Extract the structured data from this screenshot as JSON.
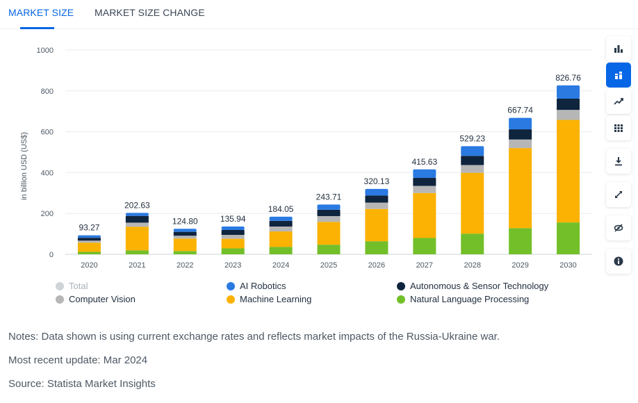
{
  "tabs": [
    {
      "label": "MARKET SIZE"
    },
    {
      "label": "MARKET SIZE CHANGE"
    }
  ],
  "colors": {
    "accent": "#0666e5",
    "ai_robotics": "#2a7ae2",
    "autonomous": "#0f243d",
    "computer_vision": "#b6b6b6",
    "machine_learning": "#fbb202",
    "nlp": "#73bf2a",
    "total_disabled": "#cfd4d9"
  },
  "toolbar": [
    {
      "name": "bar-chart-icon"
    },
    {
      "name": "stacked-bar-icon"
    },
    {
      "name": "trend-line-icon"
    },
    {
      "name": "table-icon"
    },
    {
      "name": "download-icon"
    },
    {
      "name": "fullscreen-icon"
    },
    {
      "name": "hide-icon"
    },
    {
      "name": "info-icon"
    }
  ],
  "chart_data": {
    "type": "bar",
    "stacked": true,
    "title": "",
    "xlabel": "",
    "ylabel": "in billion USD (US$)",
    "ylim": [
      0,
      1000
    ],
    "yticks": [
      0,
      200,
      400,
      600,
      800,
      1000
    ],
    "categories": [
      "2020",
      "2021",
      "2022",
      "2023",
      "2024",
      "2025",
      "2026",
      "2027",
      "2028",
      "2029",
      "2030"
    ],
    "totals": [
      93.27,
      202.63,
      124.8,
      135.94,
      184.05,
      243.71,
      320.13,
      415.63,
      529.23,
      667.74,
      826.76
    ],
    "total_labels": [
      "93.27",
      "202.63",
      "124.80",
      "135.94",
      "184.05",
      "243.71",
      "320.13",
      "415.63",
      "529.23",
      "667.74",
      "826.76"
    ],
    "series": [
      {
        "name": "Natural Language Processing",
        "color": "#73bf2a",
        "values": [
          12.0,
          19.0,
          16.0,
          29.0,
          36.0,
          47.0,
          64.0,
          80.0,
          101.0,
          128.0,
          156.0
        ]
      },
      {
        "name": "Machine Learning",
        "color": "#fbb202",
        "values": [
          45.0,
          116.0,
          61.0,
          47.0,
          76.0,
          112.0,
          158.0,
          220.0,
          298.0,
          392.0,
          502.0
        ]
      },
      {
        "name": "Computer Vision",
        "color": "#b6b6b6",
        "values": [
          10.0,
          20.0,
          14.0,
          19.0,
          24.0,
          28.0,
          31.0,
          35.0,
          38.0,
          42.0,
          49.0
        ]
      },
      {
        "name": "Autonomous & Sensor Technology",
        "color": "#0f243d",
        "values": [
          14.0,
          33.0,
          19.0,
          24.0,
          28.0,
          31.0,
          35.0,
          39.0,
          45.0,
          50.0,
          55.0
        ]
      },
      {
        "name": "AI Robotics",
        "color": "#2a7ae2",
        "values": [
          12.27,
          14.63,
          14.8,
          16.94,
          20.05,
          25.71,
          32.13,
          41.63,
          47.23,
          55.74,
          64.76
        ]
      }
    ]
  },
  "legend": [
    {
      "label": "Total",
      "color": "#cfd4d9",
      "disabled": true
    },
    {
      "label": "AI Robotics",
      "color": "#2a7ae2",
      "disabled": false
    },
    {
      "label": "Autonomous & Sensor Technology",
      "color": "#0f243d",
      "disabled": false
    },
    {
      "label": "Computer Vision",
      "color": "#b6b6b6",
      "disabled": false
    },
    {
      "label": "Machine Learning",
      "color": "#fbb202",
      "disabled": false
    },
    {
      "label": "Natural Language Processing",
      "color": "#73bf2a",
      "disabled": false
    }
  ],
  "notes": {
    "note": "Notes: Data shown is using current exchange rates and reflects market impacts of the Russia-Ukraine war.",
    "update": "Most recent update: Mar 2024",
    "source": "Source: Statista Market Insights"
  }
}
